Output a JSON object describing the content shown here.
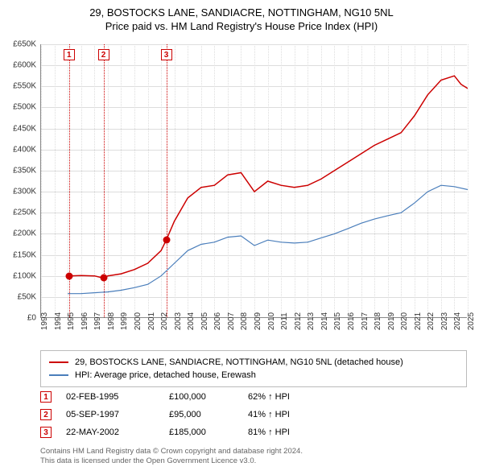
{
  "title": {
    "line1": "29, BOSTOCKS LANE, SANDIACRE, NOTTINGHAM, NG10 5NL",
    "line2": "Price paid vs. HM Land Registry's House Price Index (HPI)"
  },
  "chart": {
    "type": "line",
    "x_start_year": 1993,
    "x_end_year": 2025,
    "y_min": 0,
    "y_max": 650000,
    "y_step": 50000,
    "y_prefix": "£",
    "y_suffix": "K",
    "background_color": "#ffffff",
    "grid_color": "#dddddd",
    "axis_color": "#888888",
    "series": [
      {
        "name": "29, BOSTOCKS LANE, SANDIACRE, NOTTINGHAM, NG10 5NL (detached house)",
        "color": "#cc0000",
        "width": 1.5,
        "points": [
          [
            1995.1,
            100000
          ],
          [
            1996,
            101000
          ],
          [
            1997,
            100000
          ],
          [
            1997.68,
            95000
          ],
          [
            1998,
            100000
          ],
          [
            1999,
            105000
          ],
          [
            2000,
            115000
          ],
          [
            2001,
            130000
          ],
          [
            2002,
            160000
          ],
          [
            2002.39,
            185000
          ],
          [
            2003,
            230000
          ],
          [
            2004,
            285000
          ],
          [
            2005,
            310000
          ],
          [
            2006,
            315000
          ],
          [
            2007,
            340000
          ],
          [
            2008,
            345000
          ],
          [
            2009,
            300000
          ],
          [
            2010,
            325000
          ],
          [
            2011,
            315000
          ],
          [
            2012,
            310000
          ],
          [
            2013,
            315000
          ],
          [
            2014,
            330000
          ],
          [
            2015,
            350000
          ],
          [
            2016,
            370000
          ],
          [
            2017,
            390000
          ],
          [
            2018,
            410000
          ],
          [
            2019,
            425000
          ],
          [
            2020,
            440000
          ],
          [
            2021,
            480000
          ],
          [
            2022,
            530000
          ],
          [
            2023,
            565000
          ],
          [
            2024,
            575000
          ],
          [
            2024.5,
            555000
          ],
          [
            2025,
            545000
          ]
        ]
      },
      {
        "name": "HPI: Average price, detached house, Erewash",
        "color": "#4a7ebb",
        "width": 1.2,
        "points": [
          [
            1995,
            58000
          ],
          [
            1996,
            58000
          ],
          [
            1997,
            60000
          ],
          [
            1998,
            62000
          ],
          [
            1999,
            66000
          ],
          [
            2000,
            72000
          ],
          [
            2001,
            80000
          ],
          [
            2002,
            100000
          ],
          [
            2003,
            130000
          ],
          [
            2004,
            160000
          ],
          [
            2005,
            175000
          ],
          [
            2006,
            180000
          ],
          [
            2007,
            192000
          ],
          [
            2008,
            195000
          ],
          [
            2009,
            172000
          ],
          [
            2010,
            185000
          ],
          [
            2011,
            180000
          ],
          [
            2012,
            178000
          ],
          [
            2013,
            180000
          ],
          [
            2014,
            190000
          ],
          [
            2015,
            200000
          ],
          [
            2016,
            212000
          ],
          [
            2017,
            225000
          ],
          [
            2018,
            235000
          ],
          [
            2019,
            243000
          ],
          [
            2020,
            250000
          ],
          [
            2021,
            273000
          ],
          [
            2022,
            300000
          ],
          [
            2023,
            315000
          ],
          [
            2024,
            312000
          ],
          [
            2025,
            305000
          ]
        ]
      }
    ],
    "sales": [
      {
        "idx": "1",
        "year": 1995.1,
        "price": 100000
      },
      {
        "idx": "2",
        "year": 1997.68,
        "price": 95000
      },
      {
        "idx": "3",
        "year": 2002.39,
        "price": 185000
      }
    ]
  },
  "legend": {
    "items": [
      {
        "color": "#cc0000",
        "label": "29, BOSTOCKS LANE, SANDIACRE, NOTTINGHAM, NG10 5NL (detached house)"
      },
      {
        "color": "#4a7ebb",
        "label": "HPI: Average price, detached house, Erewash"
      }
    ]
  },
  "transactions": [
    {
      "idx": "1",
      "date": "02-FEB-1995",
      "price": "£100,000",
      "delta": "62% ↑ HPI"
    },
    {
      "idx": "2",
      "date": "05-SEP-1997",
      "price": "£95,000",
      "delta": "41% ↑ HPI"
    },
    {
      "idx": "3",
      "date": "22-MAY-2002",
      "price": "£185,000",
      "delta": "81% ↑ HPI"
    }
  ],
  "footer": {
    "line1": "Contains HM Land Registry data © Crown copyright and database right 2024.",
    "line2": "This data is licensed under the Open Government Licence v3.0."
  }
}
